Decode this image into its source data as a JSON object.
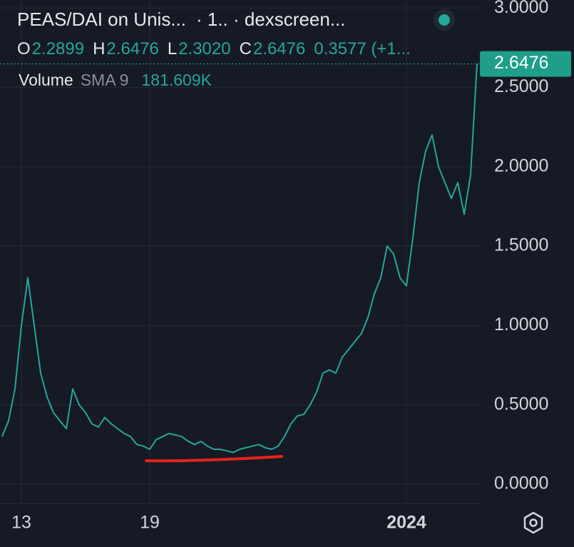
{
  "chart_data": {
    "type": "line",
    "title": "PEAS/DAI on Unis...",
    "subtitle": "· 1.. · dexscreen...",
    "ohlc": [
      {
        "key": "O",
        "value": "2.2899"
      },
      {
        "key": "H",
        "value": "2.6476"
      },
      {
        "key": "L",
        "value": "2.3020"
      },
      {
        "key": "C",
        "value": "2.6476"
      }
    ],
    "change": "0.3577 (+1...",
    "volume_label": "Volume",
    "sma_label": "SMA 9",
    "volume_value": "181.609K",
    "last_price": {
      "value": 2.6476,
      "label": "2.6476"
    },
    "categories": [
      null,
      null,
      null,
      "13",
      null,
      null,
      null,
      null,
      null,
      null,
      null,
      null,
      null,
      null,
      null,
      null,
      null,
      null,
      null,
      null,
      null,
      null,
      null,
      "19",
      null,
      null,
      null,
      null,
      null,
      null,
      null,
      null,
      null,
      null,
      null,
      null,
      null,
      null,
      null,
      null,
      null,
      null,
      null,
      null,
      null,
      null,
      null,
      null,
      null,
      null,
      null,
      null,
      null,
      null,
      null,
      null,
      null,
      null,
      null,
      null,
      null,
      null,
      null,
      "2024",
      null,
      null,
      null,
      null,
      null,
      null,
      null,
      null,
      null,
      null,
      null
    ],
    "series": [
      {
        "name": "PEAS/DAI",
        "color": "#26a69a",
        "values": [
          0.3,
          0.4,
          0.6,
          1.0,
          1.3,
          1.0,
          0.7,
          0.55,
          0.45,
          0.4,
          0.35,
          0.6,
          0.5,
          0.45,
          0.38,
          0.36,
          0.42,
          0.38,
          0.35,
          0.32,
          0.3,
          0.25,
          0.24,
          0.22,
          0.28,
          0.3,
          0.32,
          0.31,
          0.3,
          0.27,
          0.25,
          0.27,
          0.24,
          0.22,
          0.22,
          0.21,
          0.2,
          0.22,
          0.23,
          0.24,
          0.25,
          0.23,
          0.22,
          0.24,
          0.3,
          0.38,
          0.43,
          0.44,
          0.5,
          0.58,
          0.7,
          0.72,
          0.7,
          0.8,
          0.85,
          0.9,
          0.95,
          1.05,
          1.2,
          1.3,
          1.5,
          1.45,
          1.3,
          1.25,
          1.55,
          1.9,
          2.1,
          2.2,
          2.0,
          1.9,
          1.8,
          1.9,
          1.7,
          1.95,
          2.6476
        ]
      }
    ],
    "ylim": [
      -0.09,
      3.05
    ],
    "yticks": [
      {
        "value": 0,
        "label": "0.0000"
      },
      {
        "value": 0.5,
        "label": "0.5000"
      },
      {
        "value": 1,
        "label": "1.0000"
      },
      {
        "value": 1.5,
        "label": "1.5000"
      },
      {
        "value": 2,
        "label": "2.0000"
      },
      {
        "value": 2.5,
        "label": "2.5000"
      },
      {
        "value": 3,
        "label": "3.0000"
      }
    ],
    "grid": true
  }
}
